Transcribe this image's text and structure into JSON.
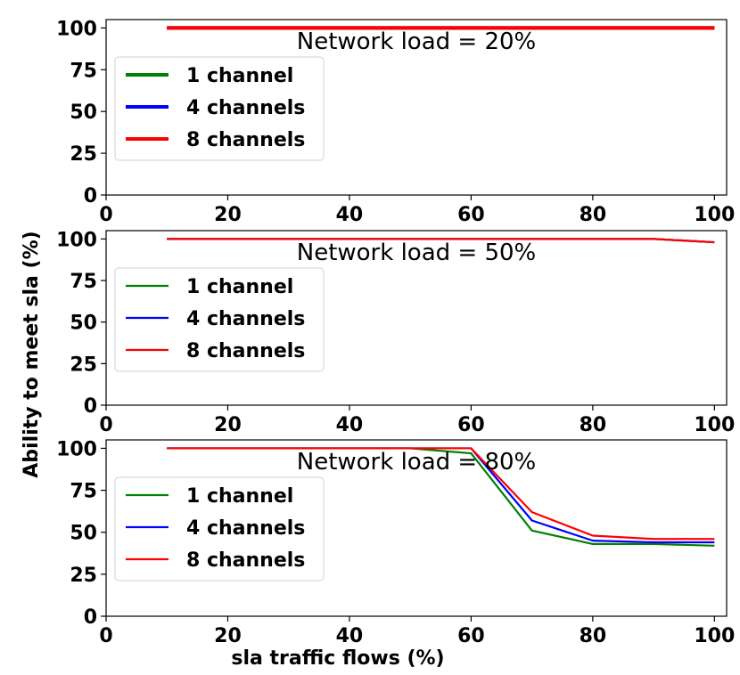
{
  "chart_data": [
    {
      "type": "line",
      "title": "Network load = 20%",
      "xlabel": "",
      "ylabel": "",
      "x": [
        10,
        20,
        30,
        40,
        50,
        60,
        70,
        80,
        90,
        100
      ],
      "xlim": [
        0,
        102
      ],
      "ylim": [
        0,
        105
      ],
      "xticks": [
        "0",
        "20",
        "40",
        "60",
        "80",
        "100"
      ],
      "yticks": [
        "0",
        "25",
        "50",
        "75",
        "100"
      ],
      "grid": false,
      "legend_position": "middle-left",
      "series": [
        {
          "name": "1 channel",
          "color": "#008000",
          "values": [
            100,
            100,
            100,
            100,
            100,
            100,
            100,
            100,
            100,
            100
          ]
        },
        {
          "name": "4 channels",
          "color": "#0000ff",
          "values": [
            100,
            100,
            100,
            100,
            100,
            100,
            100,
            100,
            100,
            100
          ]
        },
        {
          "name": "8 channels",
          "color": "#ff0000",
          "values": [
            100,
            100,
            100,
            100,
            100,
            100,
            100,
            100,
            100,
            100
          ]
        }
      ]
    },
    {
      "type": "line",
      "title": "Network load = 50%",
      "xlabel": "",
      "ylabel": "Ability to meet sla (%)",
      "x": [
        10,
        20,
        30,
        40,
        50,
        60,
        70,
        80,
        90,
        100
      ],
      "xlim": [
        0,
        102
      ],
      "ylim": [
        0,
        105
      ],
      "xticks": [
        "0",
        "20",
        "40",
        "60",
        "80",
        "100"
      ],
      "yticks": [
        "0",
        "25",
        "50",
        "75",
        "100"
      ],
      "grid": false,
      "legend_position": "middle-left",
      "series": [
        {
          "name": "1 channel",
          "color": "#008000",
          "values": [
            100,
            100,
            100,
            100,
            100,
            100,
            100,
            100,
            100,
            98
          ]
        },
        {
          "name": "4 channels",
          "color": "#0000ff",
          "values": [
            100,
            100,
            100,
            100,
            100,
            100,
            100,
            100,
            100,
            98
          ]
        },
        {
          "name": "8 channels",
          "color": "#ff0000",
          "values": [
            100,
            100,
            100,
            100,
            100,
            100,
            100,
            100,
            100,
            98
          ]
        }
      ]
    },
    {
      "type": "line",
      "title": "Network load = 80%",
      "xlabel": "sla traffic flows (%)",
      "ylabel": "",
      "x": [
        10,
        20,
        30,
        40,
        50,
        60,
        70,
        80,
        90,
        100
      ],
      "xlim": [
        0,
        102
      ],
      "ylim": [
        0,
        105
      ],
      "xticks": [
        "0",
        "20",
        "40",
        "60",
        "80",
        "100"
      ],
      "yticks": [
        "0",
        "25",
        "50",
        "75",
        "100"
      ],
      "grid": false,
      "legend_position": "middle-left",
      "series": [
        {
          "name": "1 channel",
          "color": "#008000",
          "values": [
            100,
            100,
            100,
            100,
            100,
            97,
            51,
            43,
            43,
            42
          ]
        },
        {
          "name": "4 channels",
          "color": "#0000ff",
          "values": [
            100,
            100,
            100,
            100,
            100,
            100,
            57,
            45,
            44,
            44
          ]
        },
        {
          "name": "8 channels",
          "color": "#ff0000",
          "values": [
            100,
            100,
            100,
            100,
            100,
            100,
            62,
            48,
            46,
            46
          ]
        }
      ]
    }
  ]
}
